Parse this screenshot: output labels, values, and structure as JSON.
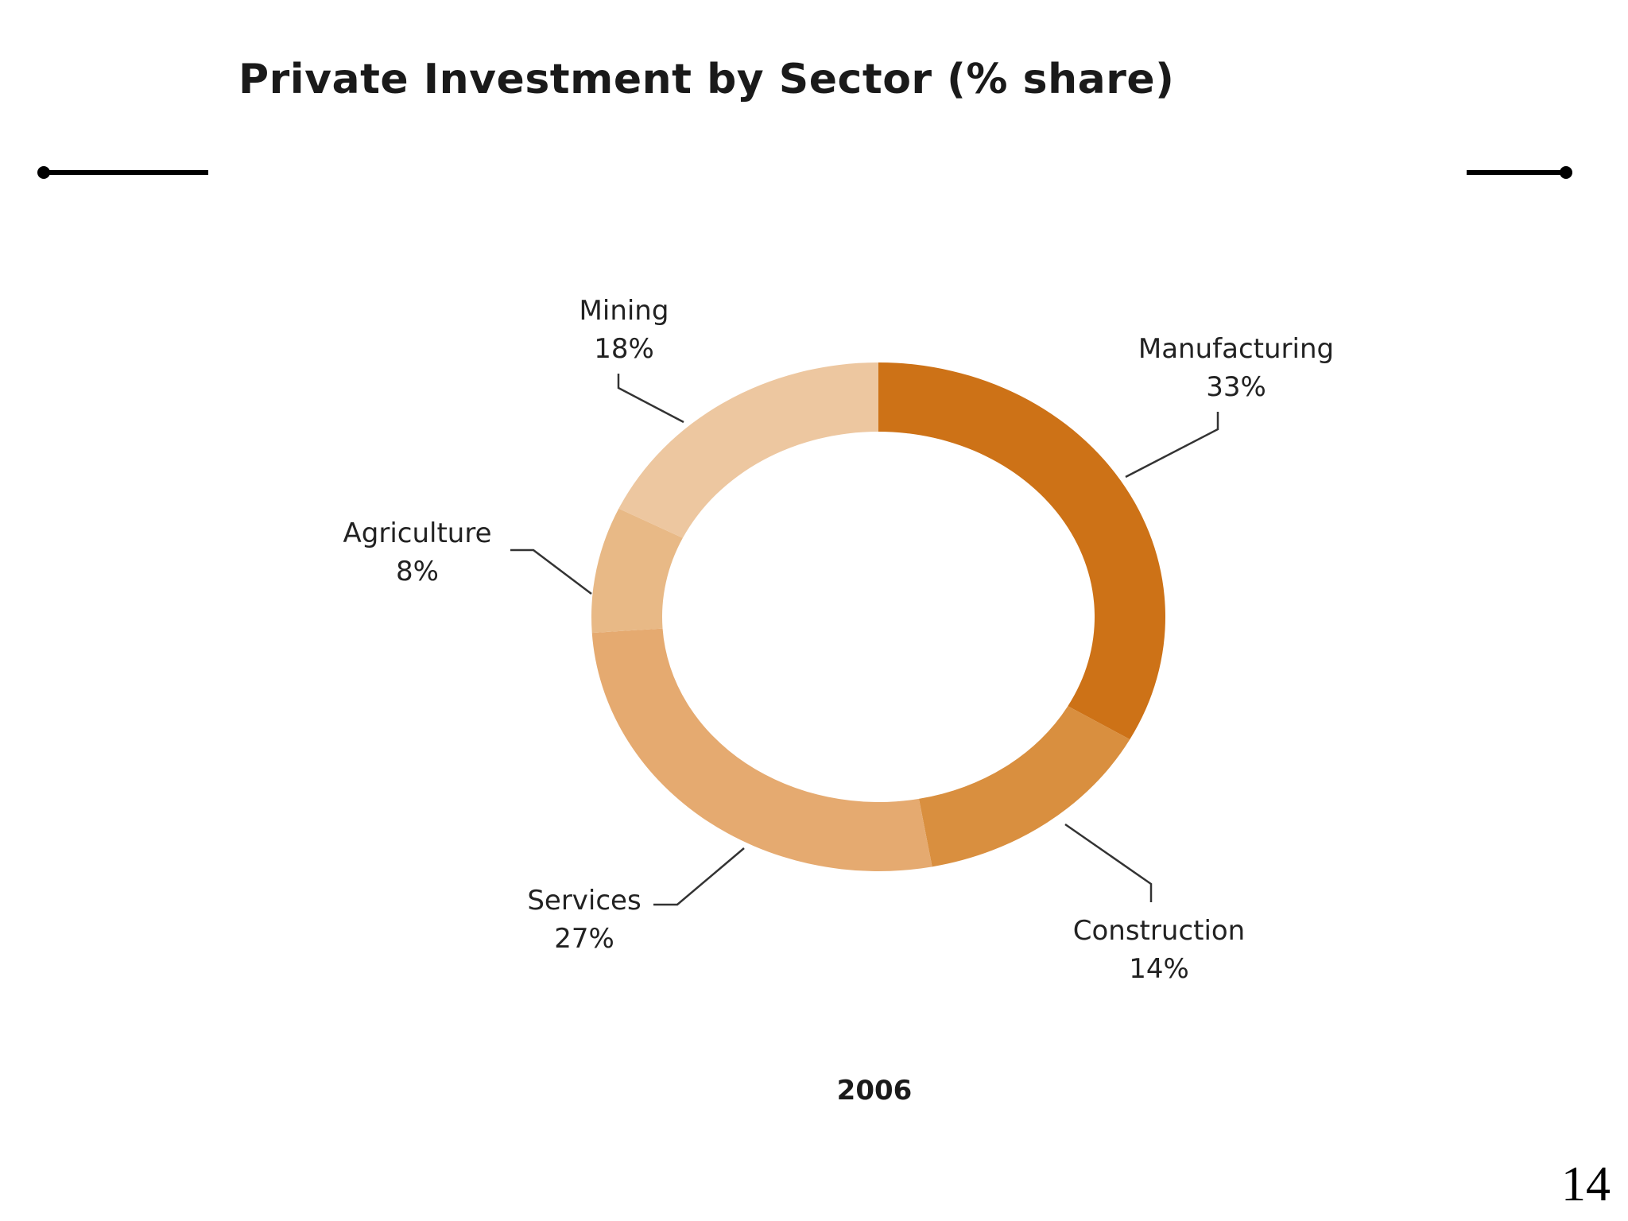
{
  "slide": {
    "page_number": "14"
  },
  "colors": {
    "Manufacturing": "#cd7217",
    "Construction": "#d98f3f",
    "Services": "#e5aa70",
    "Agriculture": "#e8b986",
    "Mining": "#edc7a0",
    "leader_line": "#333333",
    "rule": "#000000"
  },
  "chart_data": {
    "type": "pie",
    "donut": true,
    "title": "Private Investment by Sector (% share)",
    "center_label": "2006",
    "categories": [
      "Manufacturing",
      "Construction",
      "Services",
      "Agriculture",
      "Mining"
    ],
    "values": [
      33,
      14,
      27,
      8,
      18
    ],
    "value_labels": [
      "33%",
      "14%",
      "27%",
      "8%",
      "18%"
    ],
    "start_angle": "12 o'clock",
    "direction": "clockwise",
    "labels": "outside with leader lines",
    "legend": "none"
  }
}
